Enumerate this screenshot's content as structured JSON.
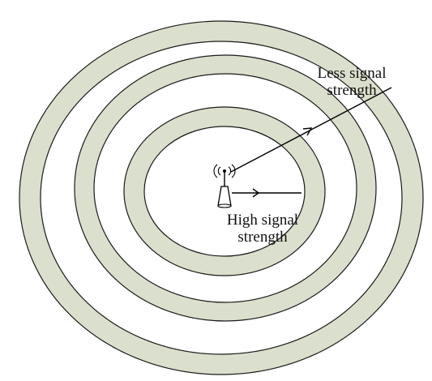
{
  "colors": {
    "ring_fill": "#dbdfcd",
    "ring_stroke": "#1a1a1a",
    "background": "#ffffff",
    "arrow": "#000000"
  },
  "rings": [
    {
      "name": "outer-ring"
    },
    {
      "name": "middle-ring"
    },
    {
      "name": "inner-ring"
    }
  ],
  "icons": {
    "tower": "wireless-tower-icon",
    "waves": "signal-waves-icon"
  },
  "labels": {
    "less_signal": {
      "line1": "Less signal",
      "line2": "strength"
    },
    "high_signal": {
      "line1": "High signal",
      "line2": "strength"
    }
  }
}
